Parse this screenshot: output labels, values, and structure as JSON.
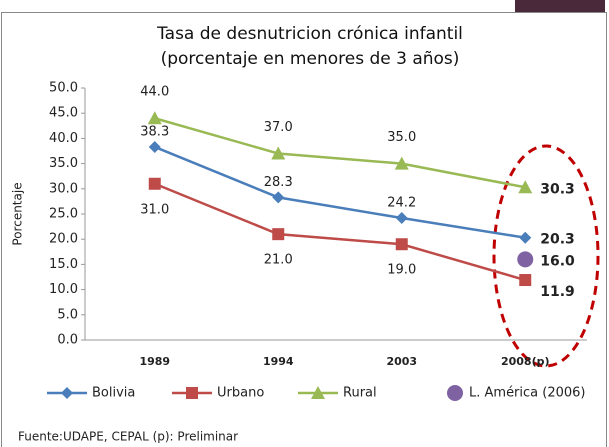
{
  "chart_data": {
    "type": "line",
    "title": "Tasa de desnutricion crónica infantil (porcentaje en menores de 3 años)",
    "y_label": "Porcentaje",
    "source": "Fuente:UDAPE, CEPAL  (p): Preliminar",
    "categories": [
      "1989",
      "1994",
      "2003",
      "2008(p)"
    ],
    "ylim": [
      0,
      50
    ],
    "yticks": [
      {
        "value": 0,
        "label": "0.0"
      },
      {
        "value": 5,
        "label": "5.0"
      },
      {
        "value": 10,
        "label": "10.0"
      },
      {
        "value": 15,
        "label": "15.0"
      },
      {
        "value": 20,
        "label": "20.0"
      },
      {
        "value": 25,
        "label": "25.0"
      },
      {
        "value": 30,
        "label": "30.0"
      },
      {
        "value": 35,
        "label": "35.0"
      },
      {
        "value": 40,
        "label": "40.0"
      },
      {
        "value": 45,
        "label": "45.0"
      },
      {
        "value": 50,
        "label": "50.0"
      }
    ],
    "legend": "bottom",
    "series": [
      {
        "name": "Bolivia",
        "color": "#4a7ebb",
        "marker": "diamond",
        "values": [
          38.3,
          28.3,
          24.2,
          20.3
        ],
        "value_labels": [
          "38.3",
          "28.3",
          "24.2",
          "20.3"
        ]
      },
      {
        "name": "Urbano",
        "color": "#be4b48",
        "marker": "square",
        "values": [
          31.0,
          21.0,
          19.0,
          11.9
        ],
        "value_labels": [
          "31.0",
          "21.0",
          "19.0",
          "11.9"
        ]
      },
      {
        "name": "Rural",
        "color": "#98b954",
        "marker": "triangle",
        "values": [
          44.0,
          37.0,
          35.0,
          30.3
        ],
        "value_labels": [
          "44.0",
          "37.0",
          "35.0",
          "30.3"
        ]
      },
      {
        "name": "L. América (2006)",
        "color": "#7e62a1",
        "marker": "circle",
        "values": [
          null,
          null,
          null,
          16.0
        ],
        "value_labels": [
          null,
          null,
          null,
          "16.0"
        ]
      }
    ]
  }
}
